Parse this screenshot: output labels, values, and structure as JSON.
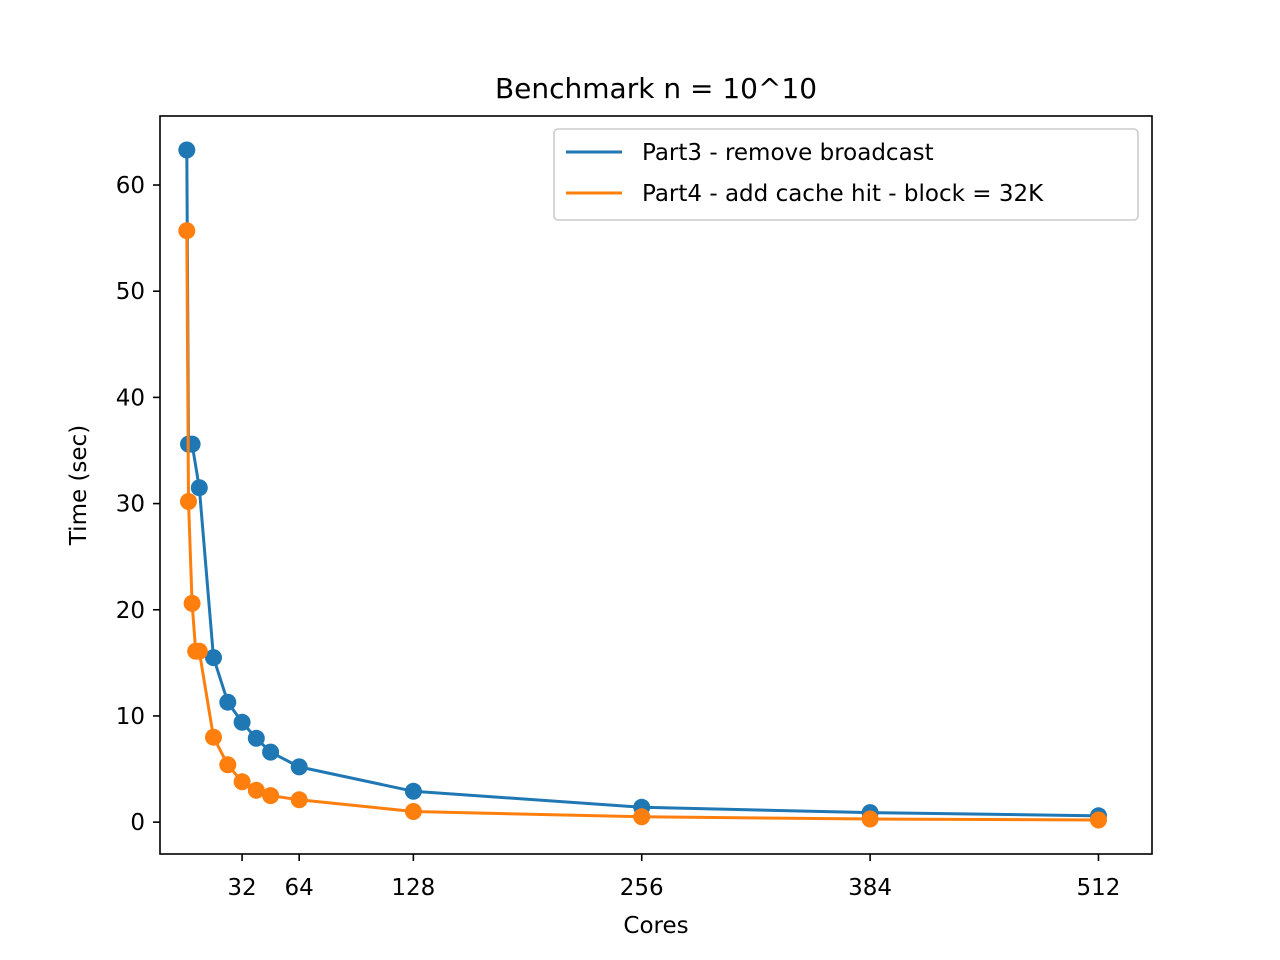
{
  "chart_data": {
    "type": "line",
    "title": "Benchmark n = 10^10",
    "xlabel": "Cores",
    "ylabel": "Time (sec)",
    "xlim": [
      -14,
      542
    ],
    "ylim": [
      -3.0,
      66.5
    ],
    "xticks": [
      32,
      64,
      128,
      256,
      384,
      512
    ],
    "yticks": [
      0,
      10,
      20,
      30,
      40,
      50,
      60
    ],
    "grid": false,
    "legend_position": "top-right",
    "series": [
      {
        "name": "Part3 - remove broadcast",
        "color": "#1f77b4",
        "x": [
          1,
          2,
          4,
          8,
          16,
          24,
          32,
          40,
          48,
          64,
          128,
          256,
          384,
          512
        ],
        "y": [
          63.3,
          35.6,
          35.6,
          31.5,
          15.5,
          11.3,
          9.4,
          7.9,
          6.6,
          5.2,
          2.9,
          1.4,
          0.9,
          0.6
        ]
      },
      {
        "name": "Part4 - add cache hit - block = 32K",
        "color": "#ff7f0e",
        "x": [
          1,
          2,
          4,
          6,
          8,
          16,
          24,
          32,
          40,
          48,
          64,
          128,
          256,
          384,
          512
        ],
        "y": [
          55.7,
          30.2,
          20.6,
          16.1,
          16.1,
          8.0,
          5.4,
          3.8,
          3.0,
          2.5,
          2.1,
          1.0,
          0.5,
          0.3,
          0.2
        ]
      }
    ]
  }
}
